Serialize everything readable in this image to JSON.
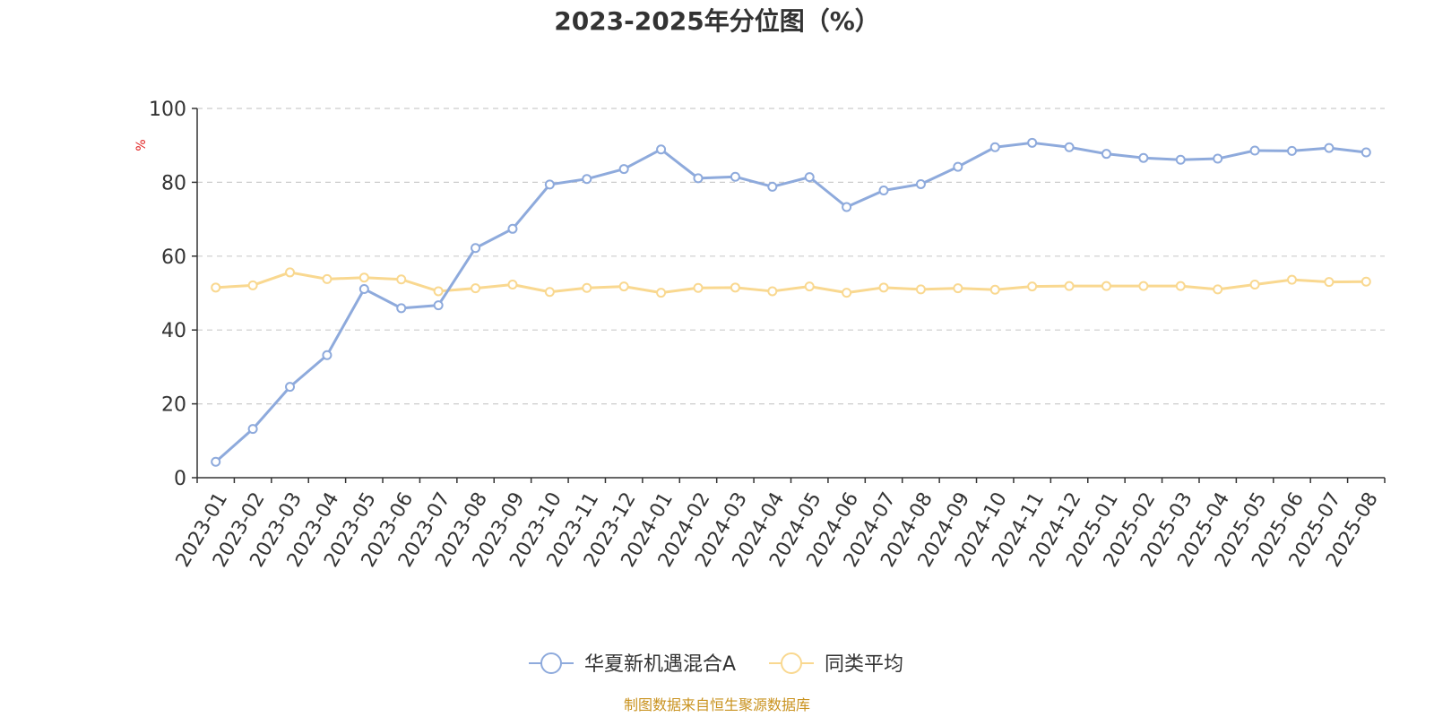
{
  "chart_data": {
    "type": "line",
    "title": "2023-2025年分位图（%）",
    "ylabel": "%",
    "xlabel": "",
    "ylim": [
      0,
      100
    ],
    "yticks": [
      0,
      20,
      40,
      60,
      80,
      100
    ],
    "grid": true,
    "legend_position": "bottom",
    "categories": [
      "2023-01",
      "2023-02",
      "2023-03",
      "2023-04",
      "2023-05",
      "2023-06",
      "2023-07",
      "2023-08",
      "2023-09",
      "2023-10",
      "2023-11",
      "2023-12",
      "2024-01",
      "2024-02",
      "2024-03",
      "2024-04",
      "2024-05",
      "2024-06",
      "2024-07",
      "2024-08",
      "2024-09",
      "2024-10",
      "2024-11",
      "2024-12",
      "2025-01",
      "2025-02",
      "2025-03",
      "2025-04",
      "2025-05",
      "2025-06",
      "2025-07",
      "2025-08"
    ],
    "series": [
      {
        "name": "华夏新机遇混合A",
        "color": "#8eaadc",
        "values": [
          4.3,
          13.2,
          24.6,
          33.2,
          51.1,
          45.9,
          46.7,
          62.2,
          67.4,
          79.4,
          80.9,
          83.6,
          88.9,
          81.1,
          81.5,
          78.8,
          81.4,
          73.3,
          77.8,
          79.5,
          84.2,
          89.5,
          90.7,
          89.5,
          87.7,
          86.6,
          86.1,
          86.4,
          88.6,
          88.5,
          89.3,
          88.1
        ]
      },
      {
        "name": "同类平均",
        "color": "#f9d890",
        "values": [
          51.5,
          52.1,
          55.6,
          53.8,
          54.2,
          53.7,
          50.5,
          51.3,
          52.3,
          50.3,
          51.4,
          51.8,
          50.1,
          51.4,
          51.5,
          50.5,
          51.8,
          50.1,
          51.5,
          51.0,
          51.3,
          50.9,
          51.8,
          51.9,
          51.9,
          51.9,
          51.9,
          51.0,
          52.3,
          53.6,
          53.0,
          53.1
        ]
      }
    ]
  },
  "source_text": "制图数据来自恒生聚源数据库"
}
